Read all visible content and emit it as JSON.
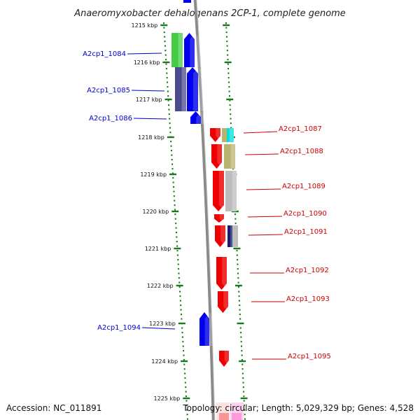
{
  "title": "Anaeromyxobacter dehalogenans 2CP-1, complete genome",
  "footer": {
    "accession": "Accession: NC_011891",
    "topology": "Topology: circular; Length: 5,029,329 bp; Genes: 4,528"
  },
  "colors": {
    "forward_label": "#0000cc",
    "reverse_label": "#cc0000",
    "tick": "#1a7a1a",
    "backbone": "#8a8a8a"
  },
  "ticks": [
    "1215 kbp",
    "1216 kbp",
    "1217 kbp",
    "1218 kbp",
    "1219 kbp",
    "1220 kbp",
    "1221 kbp",
    "1222 kbp",
    "1223 kbp",
    "1224 kbp",
    "1225 kbp"
  ],
  "genes": [
    {
      "label": "A2cp1_1084",
      "strand": "forward",
      "color": "#0000ee",
      "category_color": "#44cc44"
    },
    {
      "label": "A2cp1_1085",
      "strand": "forward",
      "color": "#0000ee",
      "category_color": "#4a4a8c"
    },
    {
      "label": "A2cp1_1086",
      "strand": "forward",
      "color": "#0000ee",
      "category_color": ""
    },
    {
      "label": "A2cp1_1087",
      "strand": "reverse",
      "color": "#ee0000",
      "category_color": "#00dddd"
    },
    {
      "label": "A2cp1_1088",
      "strand": "reverse",
      "color": "#ee0000",
      "category_color": "#b8b46e"
    },
    {
      "label": "A2cp1_1089",
      "strand": "reverse",
      "color": "#ee0000",
      "category_color": "#bdbdbd"
    },
    {
      "label": "A2cp1_1090",
      "strand": "reverse",
      "color": "#ee0000",
      "category_color": ""
    },
    {
      "label": "A2cp1_1091",
      "strand": "reverse",
      "color": "#ee0000",
      "category_color": "#1a1a6e"
    },
    {
      "label": "A2cp1_1092",
      "strand": "reverse",
      "color": "#ee0000",
      "category_color": ""
    },
    {
      "label": "A2cp1_1093",
      "strand": "reverse",
      "color": "#ee0000",
      "category_color": ""
    },
    {
      "label": "A2cp1_1094",
      "strand": "forward",
      "color": "#0000ee",
      "category_color": ""
    },
    {
      "label": "A2cp1_1095",
      "strand": "reverse",
      "color": "#ee0000",
      "category_color": ""
    }
  ]
}
